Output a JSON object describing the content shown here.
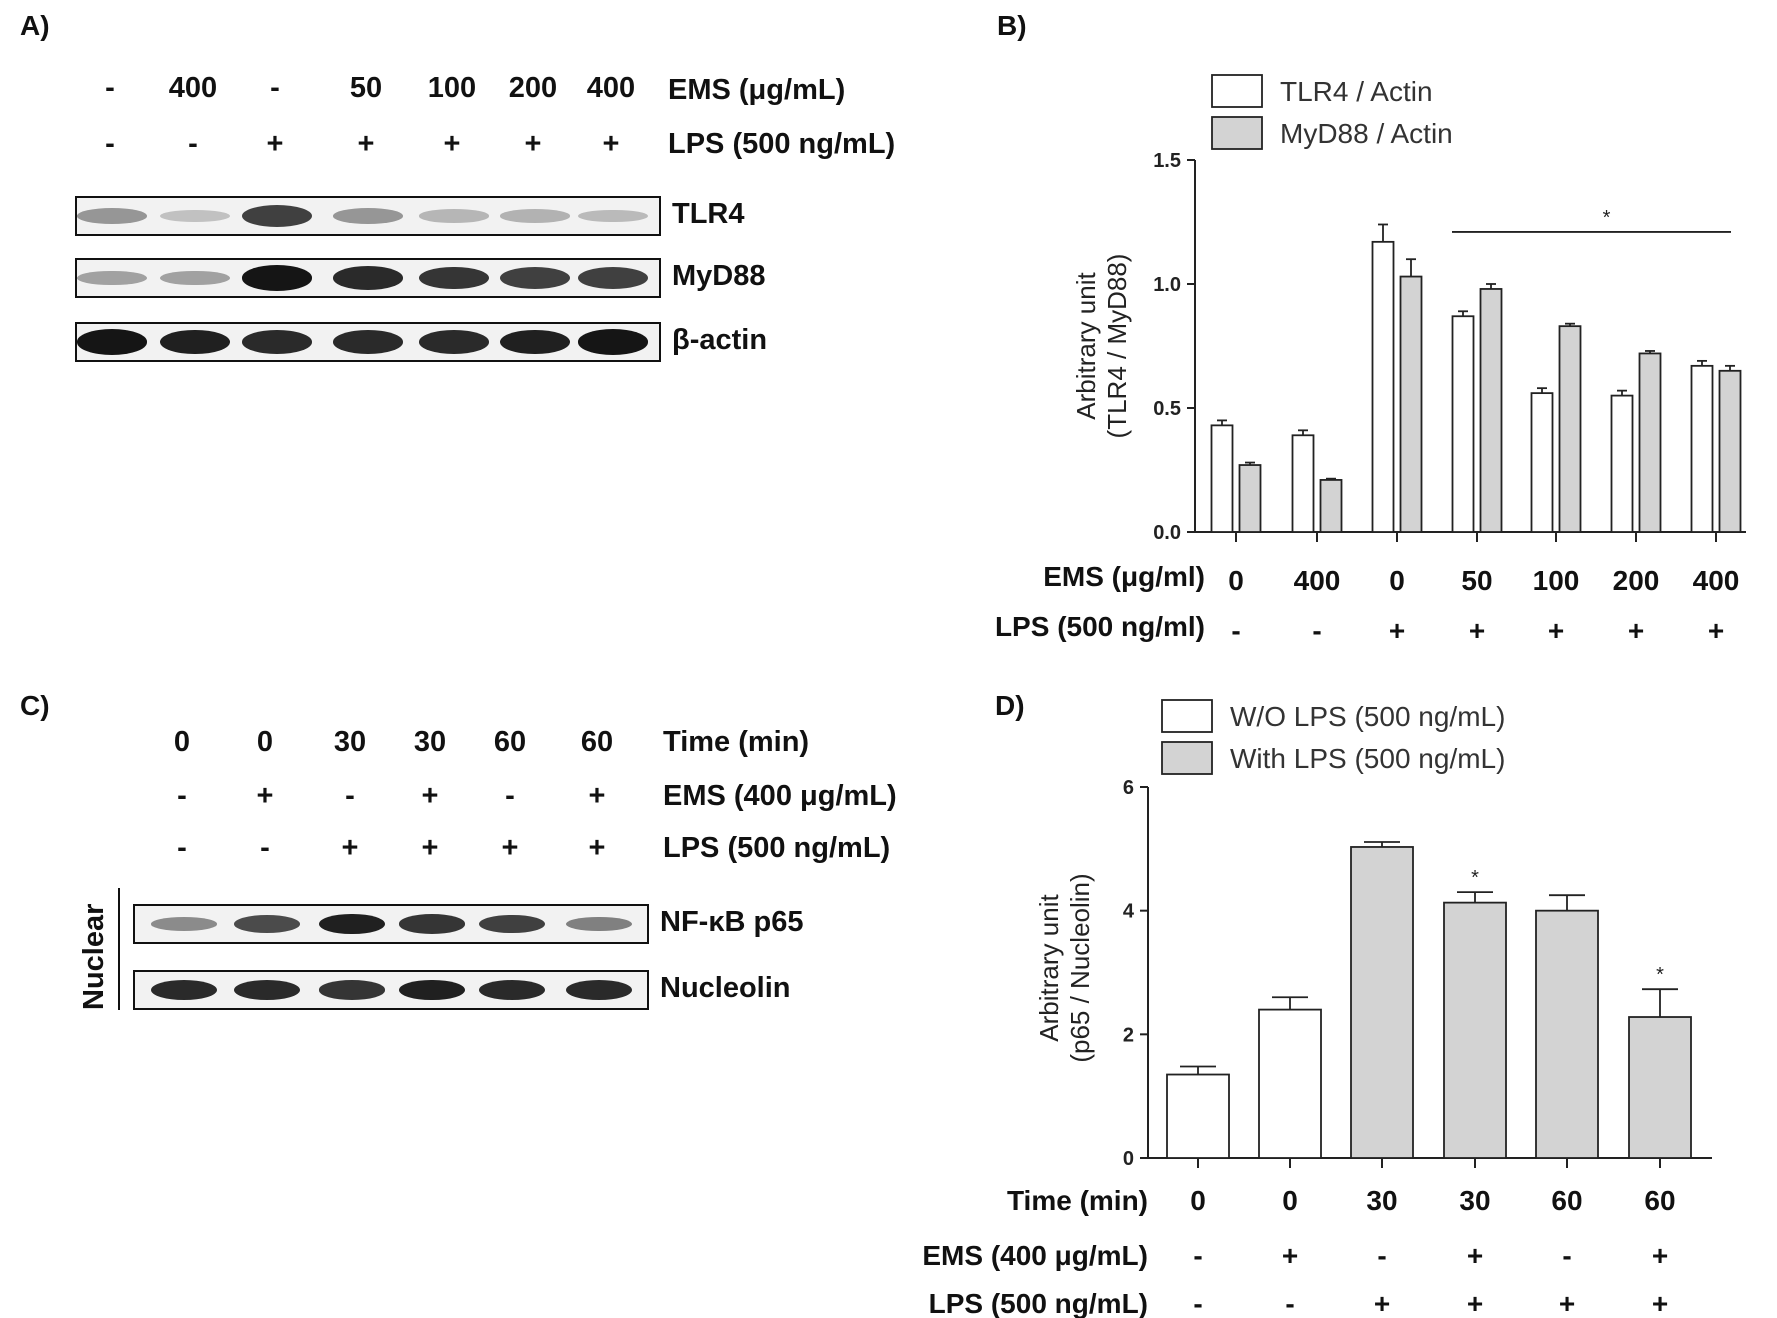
{
  "panels": {
    "a_label": "A)",
    "b_label": "B)",
    "c_label": "C)",
    "d_label": "D)"
  },
  "blot_a": {
    "ems_values": [
      "-",
      "400",
      "-",
      "50",
      "100",
      "200",
      "400"
    ],
    "lps_values": [
      "-",
      "-",
      "+",
      "+",
      "+",
      "+",
      "+"
    ],
    "ems_label": "EMS (μg/mL)",
    "lps_label": "LPS (500 ng/mL)",
    "blots": [
      {
        "name": "TLR4",
        "intensity": [
          0.35,
          0.15,
          0.75,
          0.35,
          0.2,
          0.22,
          0.18
        ]
      },
      {
        "name": "MyD88",
        "intensity": [
          0.3,
          0.3,
          0.95,
          0.85,
          0.8,
          0.75,
          0.75
        ]
      },
      {
        "name": "β-actin",
        "intensity": [
          0.95,
          0.9,
          0.85,
          0.85,
          0.85,
          0.9,
          0.95
        ]
      }
    ]
  },
  "blot_c": {
    "time_values": [
      "0",
      "0",
      "30",
      "30",
      "60",
      "60"
    ],
    "ems_values": [
      "-",
      "+",
      "-",
      "+",
      "-",
      "+"
    ],
    "lps_values": [
      "-",
      "-",
      "+",
      "+",
      "+",
      "+"
    ],
    "time_label": "Time (min)",
    "ems_label": "EMS (400 μg/mL)",
    "lps_label": "LPS (500 ng/mL)",
    "side_label": "Nuclear",
    "blots": [
      {
        "name": "NF-κB p65",
        "intensity": [
          0.4,
          0.7,
          0.9,
          0.8,
          0.75,
          0.45
        ]
      },
      {
        "name": "Nucleolin",
        "intensity": [
          0.85,
          0.85,
          0.8,
          0.9,
          0.85,
          0.85
        ]
      }
    ]
  },
  "chart_data": [
    {
      "type": "bar",
      "panel": "B)",
      "ylabel_line1": "Arbitrary unit",
      "ylabel_line2": "(TLR4 / MyD88)",
      "ylim": [
        0,
        1.5
      ],
      "yticks": [
        "0.0",
        "0.5",
        "1.0",
        "1.5"
      ],
      "ytick_values": [
        0,
        0.5,
        1.0,
        1.5
      ],
      "legend_placement": "top-left",
      "series": [
        {
          "name": "TLR4 / Actin",
          "color": "#ffffff",
          "values": [
            0.43,
            0.39,
            1.17,
            0.87,
            0.56,
            0.55,
            0.67
          ],
          "errors": [
            0.02,
            0.02,
            0.07,
            0.02,
            0.02,
            0.02,
            0.02
          ]
        },
        {
          "name": "MyD88 / Actin",
          "color": "#d3d3d3",
          "values": [
            0.27,
            0.21,
            1.03,
            0.98,
            0.83,
            0.72,
            0.65
          ],
          "errors": [
            0.01,
            0.005,
            0.07,
            0.02,
            0.01,
            0.01,
            0.02
          ]
        }
      ],
      "row1_label": "EMS (μg/ml)",
      "row1_values": [
        "0",
        "400",
        "0",
        "50",
        "100",
        "200",
        "400"
      ],
      "row2_label": "LPS (500 ng/ml)",
      "row2_values": [
        "-",
        "-",
        "+",
        "+",
        "+",
        "+",
        "+"
      ],
      "significance": {
        "from_group": 3,
        "to_group": 6,
        "level": 1.21,
        "mark": "*"
      }
    },
    {
      "type": "bar",
      "panel": "D)",
      "ylabel_line1": "Arbitrary unit",
      "ylabel_line2": "(p65 / Nucleolin)",
      "ylim": [
        0,
        6
      ],
      "yticks": [
        "0",
        "2",
        "4",
        "6"
      ],
      "ytick_values": [
        0,
        2,
        4,
        6
      ],
      "legend_placement": "top-left",
      "legend": [
        {
          "name": "W/O LPS (500 ng/mL)",
          "color": "#ffffff"
        },
        {
          "name": "With LPS (500 ng/mL)",
          "color": "#d3d3d3"
        }
      ],
      "values": [
        1.35,
        2.4,
        5.03,
        4.13,
        4.0,
        2.28
      ],
      "errors": [
        0.13,
        0.2,
        0.08,
        0.17,
        0.25,
        0.45
      ],
      "colors": [
        "#ffffff",
        "#ffffff",
        "#d3d3d3",
        "#d3d3d3",
        "#d3d3d3",
        "#d3d3d3"
      ],
      "marks": [
        "",
        "",
        "",
        "*",
        "",
        "*"
      ],
      "row1_label": "Time (min)",
      "row1_values": [
        "0",
        "0",
        "30",
        "30",
        "60",
        "60"
      ],
      "row2_label": "EMS (400 μg/mL)",
      "row2_values": [
        "-",
        "+",
        "-",
        "+",
        "-",
        "+"
      ],
      "row3_label": "LPS (500 ng/mL)",
      "row3_values": [
        "-",
        "-",
        "+",
        "+",
        "+",
        "+"
      ]
    }
  ]
}
